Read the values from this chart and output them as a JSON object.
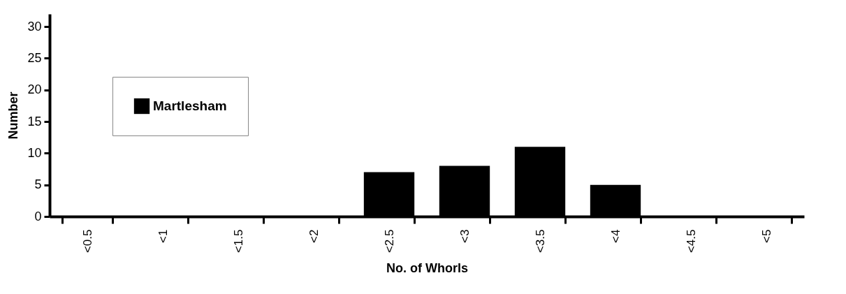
{
  "chart_data": {
    "type": "bar",
    "xlabel": "No. of Whorls",
    "ylabel": "Number",
    "categories": [
      "<0.5",
      "<1",
      "<1.5",
      "<2",
      "<2.5",
      "<3",
      "<3.5",
      "<4",
      "<4.5",
      "<5"
    ],
    "series": [
      {
        "name": "Martlesham",
        "color": "#000000",
        "values": [
          0,
          0,
          0,
          0,
          7,
          8,
          11,
          5,
          0,
          0
        ]
      }
    ],
    "ylim": [
      0,
      32
    ],
    "yticks": [
      0,
      5,
      10,
      15,
      20,
      25,
      30
    ],
    "grid": false,
    "legend": "top left"
  }
}
